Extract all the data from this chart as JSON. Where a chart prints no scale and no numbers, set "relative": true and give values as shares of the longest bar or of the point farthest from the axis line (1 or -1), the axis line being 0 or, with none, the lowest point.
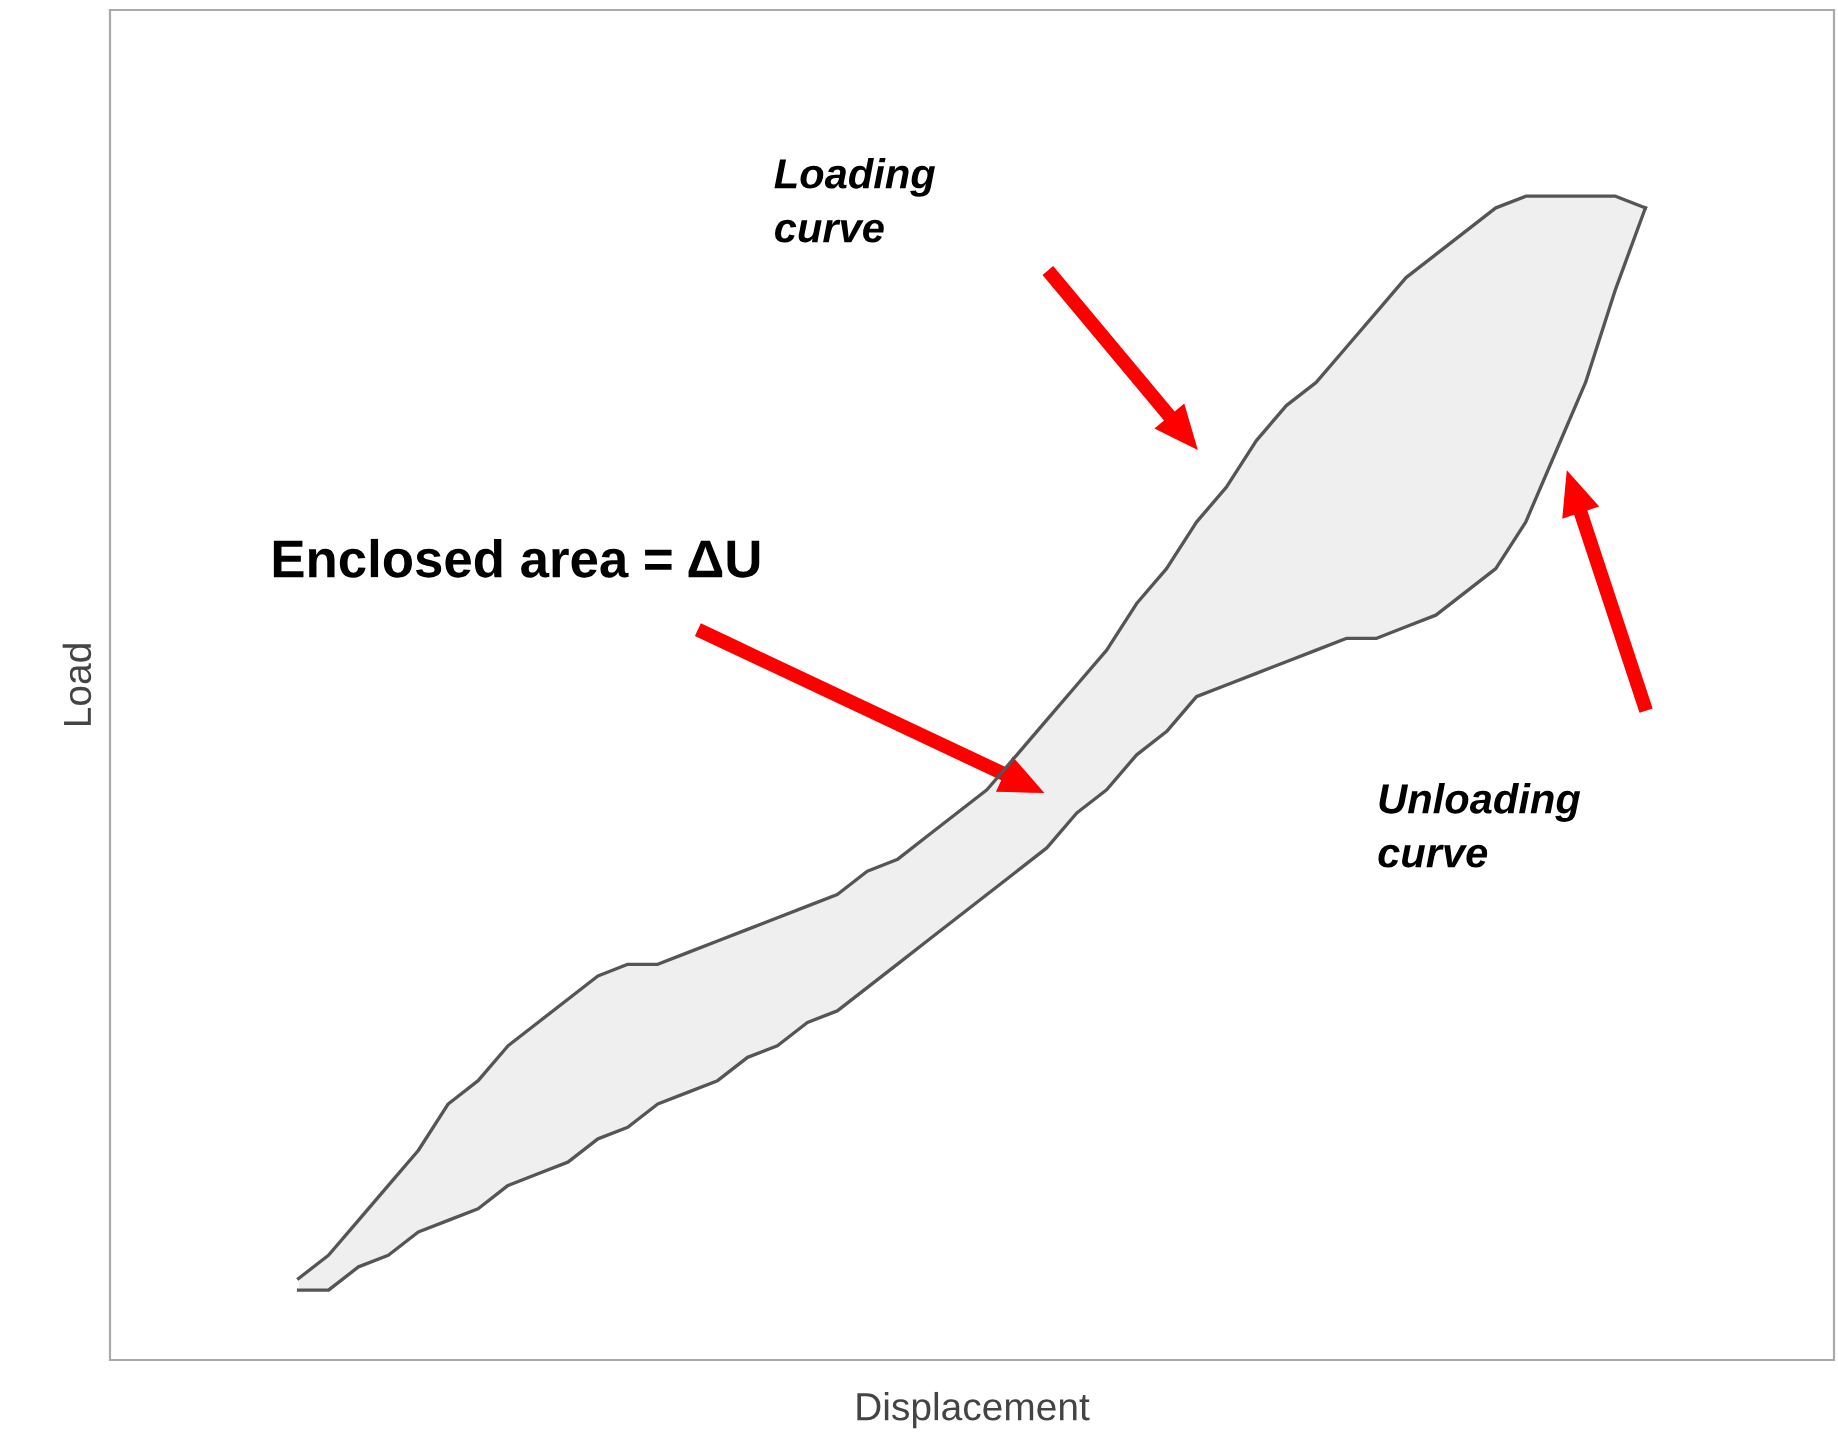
{
  "chart_data": {
    "type": "line",
    "relative": true,
    "xlabel": "Displacement",
    "ylabel": "Load",
    "categories": [
      null,
      null,
      null,
      null,
      null,
      null,
      null,
      null,
      null,
      null,
      null,
      null,
      null,
      null,
      null,
      null,
      null,
      null,
      null,
      null,
      null,
      null,
      null,
      null,
      null,
      null,
      null,
      null,
      null,
      null,
      null,
      null,
      null,
      null,
      null,
      null,
      null,
      null,
      null,
      null,
      null,
      null,
      null,
      null,
      null,
      null
    ],
    "series": [
      {
        "color": "#555555",
        "lower": [
          0.06,
          0.06,
          0.08,
          0.09,
          0.11,
          0.12,
          0.13,
          0.15,
          0.16,
          0.17,
          0.19,
          0.2,
          0.22,
          0.23,
          0.24,
          0.26,
          0.27,
          0.29,
          0.3,
          0.32,
          0.34,
          0.36,
          0.38,
          0.4,
          0.42,
          0.44,
          0.47,
          0.49,
          0.52,
          0.54,
          0.57,
          0.58,
          0.59,
          0.6,
          0.61,
          0.62,
          0.62,
          0.63,
          0.64,
          0.66,
          0.68,
          0.72,
          0.78,
          0.84,
          0.92,
          0.99
        ],
        "upper": [
          0.07,
          0.09,
          0.12,
          0.15,
          0.18,
          0.22,
          0.24,
          0.27,
          0.29,
          0.31,
          0.33,
          0.34,
          0.34,
          0.35,
          0.36,
          0.37,
          0.38,
          0.39,
          0.4,
          0.42,
          0.43,
          0.45,
          0.47,
          0.49,
          0.52,
          0.55,
          0.58,
          0.61,
          0.65,
          0.68,
          0.72,
          0.75,
          0.79,
          0.82,
          0.84,
          0.87,
          0.9,
          0.93,
          0.95,
          0.97,
          0.99,
          1.0,
          1.0,
          1.0,
          1.0,
          0.99
        ],
        "values": [
          0.07,
          0.09,
          0.12,
          0.15,
          0.18,
          0.22,
          0.24,
          0.27,
          0.29,
          0.31,
          0.33,
          0.34,
          0.34,
          0.35,
          0.36,
          0.37,
          0.38,
          0.39,
          0.4,
          0.42,
          0.43,
          0.45,
          0.47,
          0.49,
          0.52,
          0.55,
          0.58,
          0.61,
          0.65,
          0.68,
          0.72,
          0.75,
          0.79,
          0.82,
          0.84,
          0.87,
          0.9,
          0.93,
          0.95,
          0.97,
          0.99,
          1.0,
          1.0,
          1.0,
          1.0,
          0.99
        ]
      },
      {
        "color": "#555555",
        "values": [
          0.06,
          0.06,
          0.08,
          0.09,
          0.11,
          0.12,
          0.13,
          0.15,
          0.16,
          0.17,
          0.19,
          0.2,
          0.22,
          0.23,
          0.24,
          0.26,
          0.27,
          0.29,
          0.3,
          0.32,
          0.34,
          0.36,
          0.38,
          0.4,
          0.42,
          0.44,
          0.47,
          0.49,
          0.52,
          0.54,
          0.57,
          0.58,
          0.59,
          0.6,
          0.61,
          0.62,
          0.62,
          0.63,
          0.64,
          0.66,
          0.68,
          0.72,
          0.78,
          0.84,
          0.92,
          0.99
        ]
      }
    ],
    "annotations": [
      "Loading\ncurve",
      "Enclosed area = ΔU",
      "Unloading\ncurve"
    ],
    "grid": false,
    "legend": false
  }
}
